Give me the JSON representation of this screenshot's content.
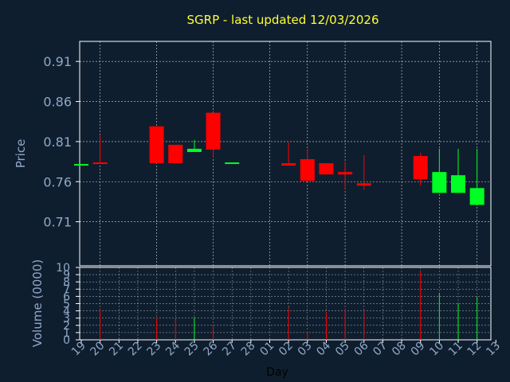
{
  "chart_data": {
    "type": "candlestick",
    "title": "SGRP - last updated 12/03/2026",
    "xlabel": "Day",
    "price_panel": {
      "ylabel": "Price",
      "ylim": [
        0.655,
        0.935
      ],
      "yticks": [
        "0.91",
        "0.86",
        "0.81",
        "0.76",
        "0.71"
      ],
      "yticks_values": [
        0.91,
        0.86,
        0.81,
        0.76,
        0.71
      ],
      "grid": true
    },
    "volume_panel": {
      "ylabel": "Volume (0000)",
      "ylim": [
        0,
        10
      ],
      "yticks": [
        "0",
        "1",
        "2",
        "3",
        "4",
        "5",
        "6",
        "7",
        "8",
        "9",
        "10"
      ],
      "grid": true
    },
    "x_tick_labels": [
      "19",
      "20",
      "21",
      "22",
      "23",
      "24",
      "25",
      "26",
      "27",
      "28",
      "01",
      "02",
      "03",
      "04",
      "05",
      "06",
      "07",
      "08",
      "09",
      "10",
      "11",
      "12",
      "13"
    ],
    "candles": [
      {
        "day": "19",
        "open": 0.781,
        "close": 0.781,
        "high": 0.781,
        "low": 0.781,
        "volume": 0
      },
      {
        "day": "20",
        "open": 0.783,
        "close": 0.783,
        "high": 0.817,
        "low": 0.783,
        "volume": 4.2
      },
      {
        "day": "23",
        "open": 0.829,
        "close": 0.783,
        "high": 0.829,
        "low": 0.783,
        "volume": 3.0
      },
      {
        "day": "24",
        "open": 0.806,
        "close": 0.783,
        "high": 0.806,
        "low": 0.783,
        "volume": 2.8
      },
      {
        "day": "25",
        "open": 0.797,
        "close": 0.801,
        "high": 0.812,
        "low": 0.797,
        "volume": 3.1
      },
      {
        "day": "26",
        "open": 0.846,
        "close": 0.8,
        "high": 0.846,
        "low": 0.79,
        "volume": 2.0
      },
      {
        "day": "27",
        "open": 0.783,
        "close": 0.783,
        "high": 0.783,
        "low": 0.783,
        "volume": 0
      },
      {
        "day": "02",
        "open": 0.783,
        "close": 0.78,
        "high": 0.809,
        "low": 0.78,
        "volume": 4.5
      },
      {
        "day": "03",
        "open": 0.788,
        "close": 0.761,
        "high": 0.801,
        "low": 0.761,
        "volume": 1.2
      },
      {
        "day": "04",
        "open": 0.783,
        "close": 0.769,
        "high": 0.783,
        "low": 0.769,
        "volume": 3.8
      },
      {
        "day": "05",
        "open": 0.772,
        "close": 0.769,
        "high": 0.785,
        "low": 0.751,
        "volume": 4.3
      },
      {
        "day": "06",
        "open": 0.758,
        "close": 0.755,
        "high": 0.793,
        "low": 0.75,
        "volume": 4.0
      },
      {
        "day": "09",
        "open": 0.792,
        "close": 0.763,
        "high": 0.796,
        "low": 0.755,
        "volume": 9.5
      },
      {
        "day": "10",
        "open": 0.746,
        "close": 0.772,
        "high": 0.801,
        "low": 0.746,
        "volume": 6.5
      },
      {
        "day": "11",
        "open": 0.746,
        "close": 0.768,
        "high": 0.801,
        "low": 0.746,
        "volume": 5.0
      },
      {
        "day": "12",
        "open": 0.731,
        "close": 0.752,
        "high": 0.801,
        "low": 0.731,
        "volume": 5.9
      }
    ],
    "colors": {
      "background": "#0f1e2e",
      "down": "#ff0000",
      "up": "#00ff22",
      "grid": "#ffffff",
      "axis": "#ffffff",
      "tick_text": "#8fa8c8",
      "title": "#ffff33"
    }
  }
}
